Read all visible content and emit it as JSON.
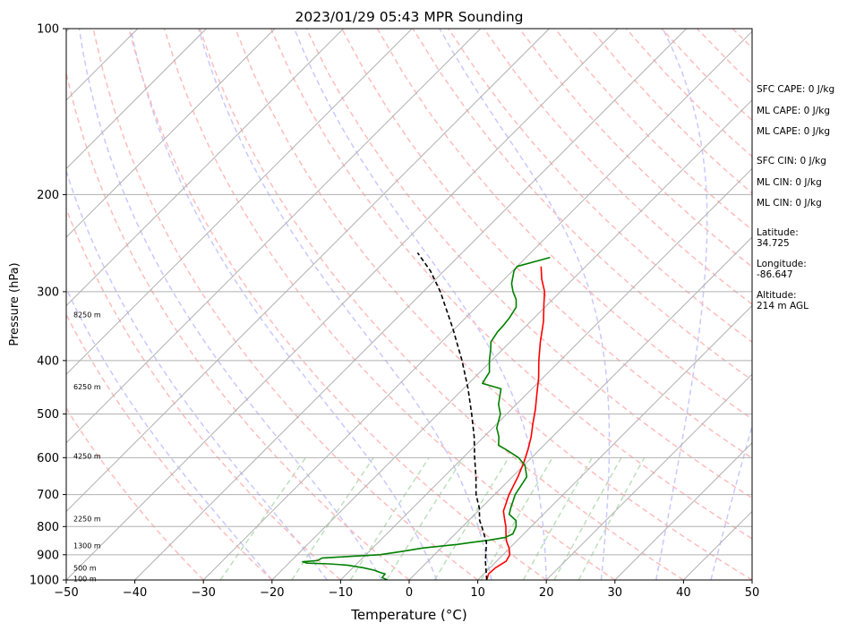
{
  "chart_data": {
    "type": "line",
    "title": "2023/01/29 05:43 MPR Sounding",
    "xlabel": "Temperature (°C)",
    "ylabel": "Pressure (hPa)",
    "xlim": [
      -50,
      50
    ],
    "ylim": [
      1000,
      100
    ],
    "y_scale": "log",
    "grid": true,
    "x_ticks": [
      -50,
      -40,
      -30,
      -20,
      -10,
      0,
      10,
      20,
      30,
      40,
      50
    ],
    "y_ticks": [
      100,
      200,
      300,
      400,
      500,
      600,
      700,
      800,
      900,
      1000
    ],
    "series": [
      {
        "color": "#ff0000",
        "points": [
          [
            11.3,
            1000
          ],
          [
            10.7,
            975
          ],
          [
            10.8,
            950
          ],
          [
            11.4,
            925
          ],
          [
            11.0,
            900
          ],
          [
            9.9,
            875
          ],
          [
            8.5,
            850
          ],
          [
            7.4,
            825
          ],
          [
            6.3,
            800
          ],
          [
            5.0,
            775
          ],
          [
            3.7,
            750
          ],
          [
            2.1,
            700
          ],
          [
            0.8,
            650
          ],
          [
            -0.5,
            610
          ],
          [
            -1.7,
            580
          ],
          [
            -3.1,
            550
          ],
          [
            -4.8,
            520
          ],
          [
            -6.5,
            490
          ],
          [
            -8.5,
            460
          ],
          [
            -10.6,
            430
          ],
          [
            -13.1,
            400
          ],
          [
            -15.6,
            370
          ],
          [
            -18.1,
            340
          ],
          [
            -20.7,
            315
          ],
          [
            -22.3,
            300
          ],
          [
            -24.5,
            285
          ],
          [
            -26.5,
            270
          ]
        ]
      },
      {
        "color": "#008000",
        "points": [
          [
            -3.2,
            1000
          ],
          [
            -4.3,
            990
          ],
          [
            -4.4,
            975
          ],
          [
            -5.2,
            970
          ],
          [
            -6.5,
            960
          ],
          [
            -8.5,
            950
          ],
          [
            -11.2,
            940
          ],
          [
            -14.0,
            935
          ],
          [
            -17.3,
            932
          ],
          [
            -18.2,
            927
          ],
          [
            -16.2,
            922
          ],
          [
            -15.9,
            912
          ],
          [
            -8.0,
            900
          ],
          [
            -5.1,
            887
          ],
          [
            -2.7,
            875
          ],
          [
            1.8,
            862
          ],
          [
            3.6,
            855
          ],
          [
            5.8,
            847
          ],
          [
            7.8,
            837
          ],
          [
            8.4,
            825
          ],
          [
            7.8,
            800
          ],
          [
            6.9,
            780
          ],
          [
            5.0,
            760
          ],
          [
            4.3,
            740
          ],
          [
            3.0,
            700
          ],
          [
            2.1,
            650
          ],
          [
            0.2,
            620
          ],
          [
            -1.9,
            600
          ],
          [
            -4.9,
            580
          ],
          [
            -6.6,
            570
          ],
          [
            -7.8,
            550
          ],
          [
            -9.4,
            530
          ],
          [
            -10.4,
            510
          ],
          [
            -10.9,
            500
          ],
          [
            -12.6,
            480
          ],
          [
            -14.5,
            450
          ],
          [
            -18.0,
            440
          ],
          [
            -18.3,
            430
          ],
          [
            -18.6,
            420
          ],
          [
            -20.3,
            400
          ],
          [
            -21.9,
            380
          ],
          [
            -22.8,
            370
          ],
          [
            -23.3,
            355
          ],
          [
            -23.4,
            345
          ],
          [
            -23.6,
            335
          ],
          [
            -24.2,
            320
          ],
          [
            -25.3,
            310
          ],
          [
            -26.9,
            300
          ],
          [
            -28.3,
            290
          ],
          [
            -29.8,
            275
          ],
          [
            -30.0,
            270
          ],
          [
            -26.5,
            260
          ]
        ]
      },
      {
        "color": "#000000",
        "dashed": true,
        "points": [
          [
            11.3,
            1000
          ],
          [
            8.4,
            925
          ],
          [
            5.8,
            855
          ],
          [
            2.8,
            800
          ],
          [
            1.6,
            780
          ],
          [
            -0.3,
            740
          ],
          [
            -2.7,
            700
          ],
          [
            -5.3,
            650
          ],
          [
            -8.3,
            600
          ],
          [
            -11.4,
            550
          ],
          [
            -15.1,
            500
          ],
          [
            -19.3,
            450
          ],
          [
            -24.3,
            400
          ],
          [
            -30.3,
            350
          ],
          [
            -37.5,
            300
          ],
          [
            -42.0,
            275
          ],
          [
            -46.5,
            255
          ]
        ]
      }
    ],
    "altitude_labels": [
      {
        "text": "100 m",
        "p": 995
      },
      {
        "text": "500 m",
        "p": 950
      },
      {
        "text": "1300 m",
        "p": 866
      },
      {
        "text": "2250 m",
        "p": 774
      },
      {
        "text": "4250 m",
        "p": 596
      },
      {
        "text": "6250 m",
        "p": 446
      },
      {
        "text": "8250 m",
        "p": 330
      }
    ],
    "info_labels": [
      {
        "text": "SFC CAPE: 0 J/kg"
      },
      {
        "text": "ML CAPE: 0 J/kg"
      },
      {
        "text": "ML CAPE: 0 J/kg"
      },
      {
        "text": "SFC CIN: 0 J/kg"
      },
      {
        "text": "ML CIN: 0 J/kg"
      },
      {
        "text": "ML CIN: 0 J/kg"
      },
      {
        "text": "Latitude:\n34.725"
      },
      {
        "text": "Longitude:\n-86.647"
      },
      {
        "text": "Altitude:\n214 m AGL"
      }
    ],
    "background_lines": {
      "isotherm_color": "#b0b0b0",
      "dry_adiabat_color": "#ffbcbc",
      "moist_adiabat_color": "#c8c8ff",
      "mixing_ratio_color": "#bde0bd"
    }
  }
}
